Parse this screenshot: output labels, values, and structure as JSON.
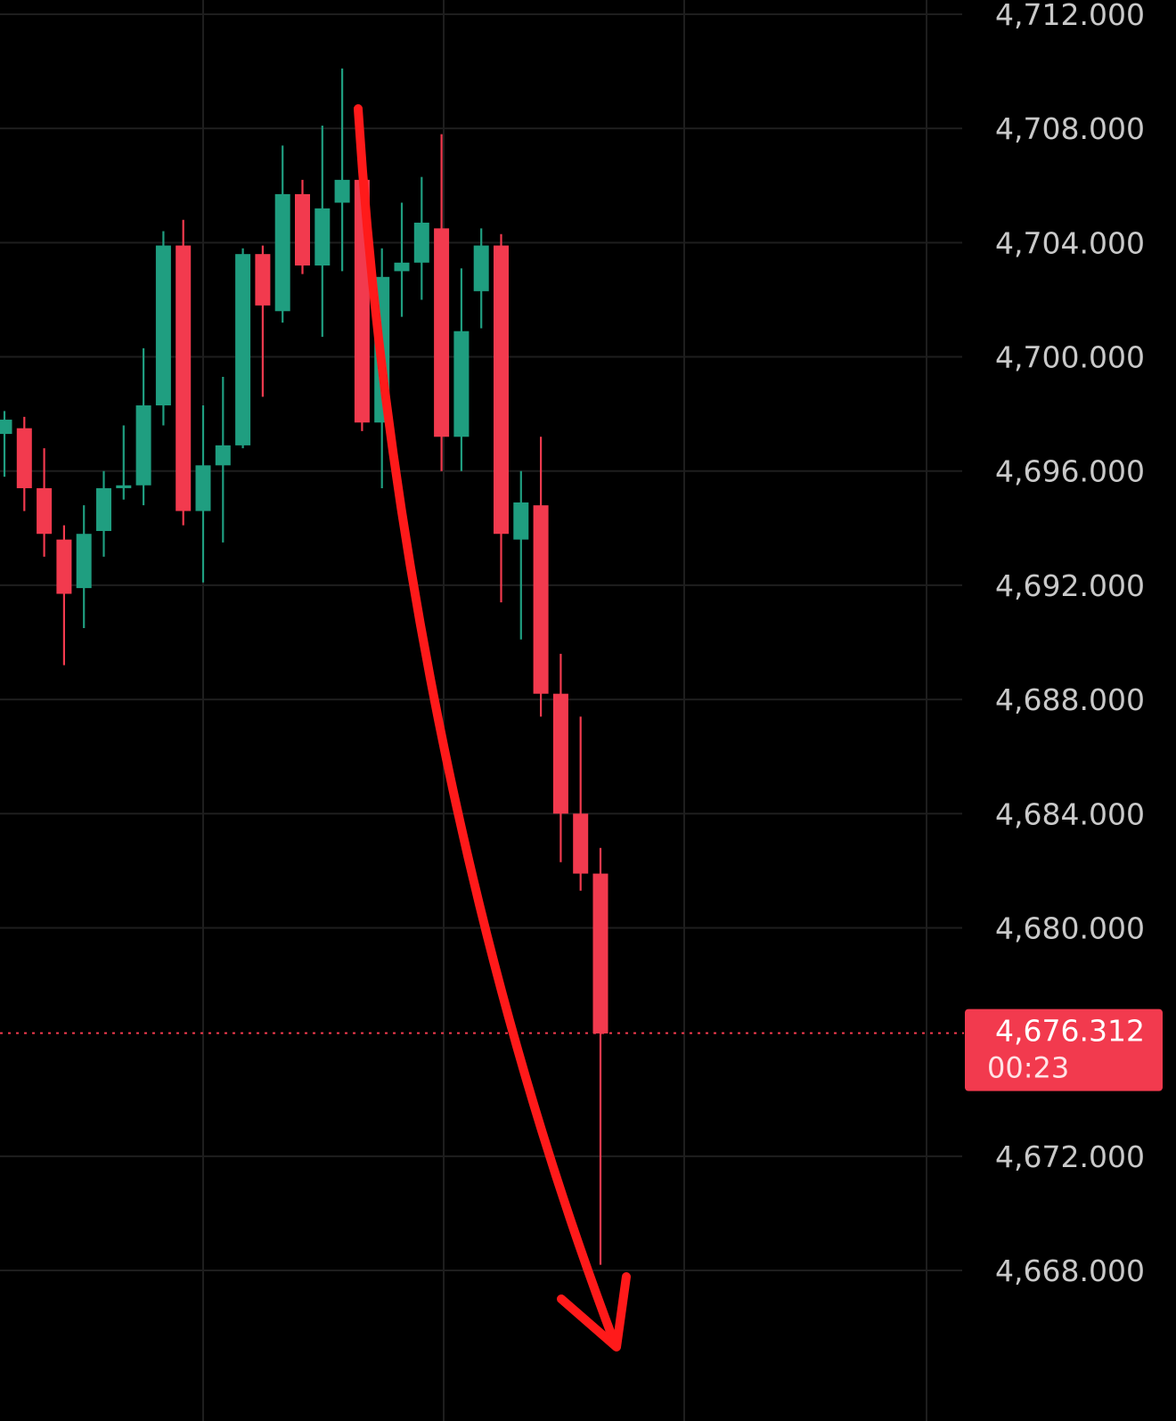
{
  "chart_data": {
    "type": "candlestick",
    "title": "",
    "xlabel": "",
    "ylabel": "",
    "ylim": [
      4664.8,
      4712.6
    ],
    "y_ticks": [
      4712,
      4708,
      4704,
      4700,
      4696,
      4692,
      4688,
      4684,
      4680,
      4672,
      4668
    ],
    "y_tick_labels": [
      "4,712.000",
      "4,708.000",
      "4,704.000",
      "4,700.000",
      "4,696.000",
      "4,692.000",
      "4,688.000",
      "4,684.000",
      "4,680.000",
      "4,672.000",
      "4,668.000"
    ],
    "grid": true,
    "candles": [
      {
        "open": 4697.3,
        "high": 4698.1,
        "low": 4695.8,
        "close": 4697.8
      },
      {
        "open": 4697.5,
        "high": 4697.9,
        "low": 4694.6,
        "close": 4695.4
      },
      {
        "open": 4695.4,
        "high": 4696.8,
        "low": 4693.0,
        "close": 4693.8
      },
      {
        "open": 4693.6,
        "high": 4694.1,
        "low": 4689.2,
        "close": 4691.7
      },
      {
        "open": 4691.9,
        "high": 4694.8,
        "low": 4690.5,
        "close": 4693.8
      },
      {
        "open": 4693.9,
        "high": 4696.0,
        "low": 4693.0,
        "close": 4695.4
      },
      {
        "open": 4695.4,
        "high": 4697.6,
        "low": 4695.0,
        "close": 4695.5
      },
      {
        "open": 4695.5,
        "high": 4700.3,
        "low": 4694.8,
        "close": 4698.3
      },
      {
        "open": 4698.3,
        "high": 4704.4,
        "low": 4697.6,
        "close": 4703.9
      },
      {
        "open": 4703.9,
        "high": 4704.8,
        "low": 4694.1,
        "close": 4694.6
      },
      {
        "open": 4694.6,
        "high": 4698.3,
        "low": 4692.1,
        "close": 4696.2
      },
      {
        "open": 4696.2,
        "high": 4699.3,
        "low": 4693.5,
        "close": 4696.9
      },
      {
        "open": 4696.9,
        "high": 4703.8,
        "low": 4696.8,
        "close": 4703.6
      },
      {
        "open": 4703.6,
        "high": 4703.9,
        "low": 4698.6,
        "close": 4701.8
      },
      {
        "open": 4701.6,
        "high": 4707.4,
        "low": 4701.2,
        "close": 4705.7
      },
      {
        "open": 4705.7,
        "high": 4706.2,
        "low": 4702.9,
        "close": 4703.2
      },
      {
        "open": 4703.2,
        "high": 4708.1,
        "low": 4700.7,
        "close": 4705.2
      },
      {
        "open": 4705.4,
        "high": 4710.1,
        "low": 4703.0,
        "close": 4706.2
      },
      {
        "open": 4706.2,
        "high": 4707.2,
        "low": 4697.4,
        "close": 4697.7
      },
      {
        "open": 4697.7,
        "high": 4703.8,
        "low": 4695.4,
        "close": 4702.8
      },
      {
        "open": 4703.0,
        "high": 4705.4,
        "low": 4701.4,
        "close": 4703.3
      },
      {
        "open": 4703.3,
        "high": 4706.3,
        "low": 4702.0,
        "close": 4704.7
      },
      {
        "open": 4704.5,
        "high": 4707.8,
        "low": 4696.0,
        "close": 4697.2
      },
      {
        "open": 4697.2,
        "high": 4703.1,
        "low": 4696.0,
        "close": 4700.9
      },
      {
        "open": 4702.3,
        "high": 4704.5,
        "low": 4701.0,
        "close": 4703.9
      },
      {
        "open": 4703.9,
        "high": 4704.3,
        "low": 4691.4,
        "close": 4693.8
      },
      {
        "open": 4693.6,
        "high": 4696.0,
        "low": 4690.1,
        "close": 4694.9
      },
      {
        "open": 4694.8,
        "high": 4697.2,
        "low": 4687.4,
        "close": 4688.2
      },
      {
        "open": 4688.2,
        "high": 4689.6,
        "low": 4682.3,
        "close": 4684.0
      },
      {
        "open": 4684.0,
        "high": 4687.4,
        "low": 4681.3,
        "close": 4681.9
      },
      {
        "open": 4681.9,
        "high": 4682.8,
        "low": 4668.2,
        "close": 4676.3
      }
    ],
    "current_price": 4676.312,
    "current_price_label": "4,676.312",
    "countdown_label": "00:23",
    "colors": {
      "background": "#000000",
      "up": "#1f9e80",
      "down": "#f23a4e",
      "grid": "#1e1e1e",
      "axis_text": "#c9c9c9",
      "price_tag": "#f23a4e",
      "annotation_arrow": "#ff1a1a"
    },
    "annotation": {
      "type": "arrow",
      "direction": "down"
    }
  }
}
